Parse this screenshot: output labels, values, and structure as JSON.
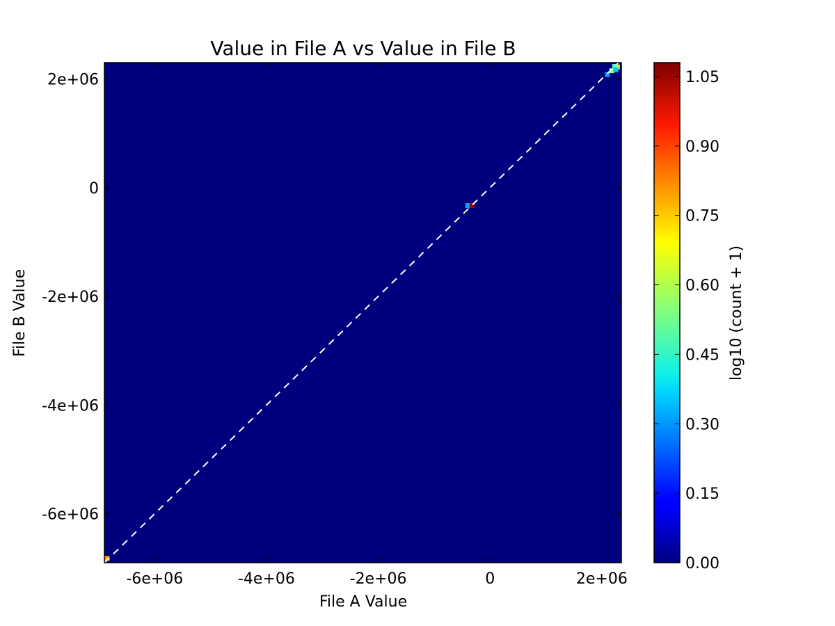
{
  "chart_data": {
    "type": "heatmap",
    "title": "Value in File A vs Value in File B",
    "xlabel": "File A Value",
    "ylabel": "File B Value",
    "xlim": [
      -6900000,
      2350000
    ],
    "ylim": [
      -6900000,
      2300000
    ],
    "xticks": [
      {
        "value": -6000000,
        "label": "-6e+06"
      },
      {
        "value": -4000000,
        "label": "-4e+06"
      },
      {
        "value": -2000000,
        "label": "-2e+06"
      },
      {
        "value": 0,
        "label": "0"
      },
      {
        "value": 2000000,
        "label": "2e+06"
      }
    ],
    "yticks": [
      {
        "value": 2000000,
        "label": "2e+06"
      },
      {
        "value": 0,
        "label": "0"
      },
      {
        "value": -2000000,
        "label": "-2e+06"
      },
      {
        "value": -4000000,
        "label": "-4e+06"
      },
      {
        "value": -6000000,
        "label": "-6e+06"
      }
    ],
    "colormap": "jet",
    "background_color": "#00007f",
    "colorbar": {
      "label": "log10 (count + 1)",
      "range": [
        0,
        1.08
      ],
      "ticks": [
        "0.00",
        "0.15",
        "0.30",
        "0.45",
        "0.60",
        "0.75",
        "0.90",
        "1.05"
      ]
    },
    "reference_line": {
      "style": "dashed",
      "color": "#ffffff",
      "from": [
        -6900000,
        -6900000
      ],
      "to": [
        2300000,
        2300000
      ]
    },
    "cells": [
      {
        "x": -6850000,
        "y": -6820000,
        "value": 0.78
      },
      {
        "x": -400000,
        "y": -330000,
        "value": 0.3
      },
      {
        "x": -320000,
        "y": -330000,
        "value": 1.05
      },
      {
        "x": 2100000,
        "y": 2080000,
        "value": 0.3
      },
      {
        "x": 2180000,
        "y": 2150000,
        "value": 0.55
      },
      {
        "x": 2230000,
        "y": 2230000,
        "value": 0.48
      },
      {
        "x": 2280000,
        "y": 2220000,
        "value": 0.6
      },
      {
        "x": 2250000,
        "y": 2170000,
        "value": 0.35
      }
    ]
  }
}
